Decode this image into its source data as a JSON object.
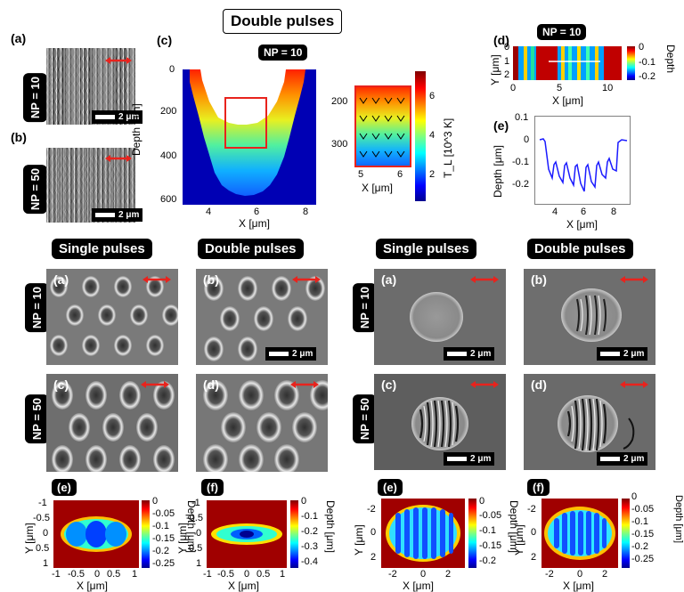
{
  "title": "Double pulses",
  "top": {
    "a_label": "(a)",
    "b_label": "(b)",
    "c_label": "(c)",
    "d_label": "(d)",
    "e_label": "(e)",
    "np10": "NP = 10",
    "np50": "NP = 50",
    "scale": "2 μm",
    "c_np": "NP = 10",
    "c_ylabel": "Depth [nm]",
    "c_xlabel": "X [μm]",
    "c_yticks": [
      "0",
      "200",
      "400",
      "600"
    ],
    "c_xticks": [
      "4",
      "6",
      "8"
    ],
    "inset_yticks": [
      "200",
      "300"
    ],
    "inset_xticks": [
      "5",
      "6"
    ],
    "inset_xlabel": "X [μm]",
    "tl_label": "T_L [10^3 K]",
    "tl_ticks": [
      "6",
      "4",
      "2"
    ],
    "d_np": "NP = 10",
    "d_ylabel": "Y [μm]",
    "d_xlabel": "X [μm]",
    "d_yticks": [
      "0",
      "1",
      "2"
    ],
    "d_xticks": [
      "0",
      "5",
      "10"
    ],
    "d_cbar_label": "Depth",
    "d_cbar_ticks": [
      "0",
      "-0.1",
      "-0.2"
    ],
    "e_ylabel": "Depth [μm]",
    "e_xlabel": "X [μm]",
    "e_yticks": [
      "0.1",
      "0",
      "-0.1",
      "-0.2"
    ],
    "e_xticks": [
      "4",
      "6",
      "8"
    ]
  },
  "bottom_left": {
    "single": "Single pulses",
    "double": "Double pulses",
    "np10": "NP = 10",
    "np50": "NP = 50",
    "labels": [
      "(a)",
      "(b)",
      "(c)",
      "(d)",
      "(e)",
      "(f)"
    ],
    "scale": "2 μm",
    "e_yticks": [
      "-1",
      "-0.5",
      "0",
      "0.5",
      "1"
    ],
    "e_xticks": [
      "-1",
      "-0.5",
      "0",
      "0.5",
      "1"
    ],
    "e_cbar": [
      "0",
      "-0.05",
      "-0.1",
      "-0.15",
      "-0.2",
      "-0.25"
    ],
    "f_cbar": [
      "0",
      "-0.1",
      "-0.2",
      "-0.3",
      "-0.4"
    ],
    "cbar_label": "Depth [μm]",
    "xlabel": "X [μm]",
    "ylabel": "Y [μm]"
  },
  "bottom_right": {
    "single": "Single pulses",
    "double": "Double pulses",
    "np10": "NP = 10",
    "np50": "NP = 50",
    "labels": [
      "(a)",
      "(b)",
      "(c)",
      "(d)",
      "(e)",
      "(f)"
    ],
    "scale": "2 μm",
    "e_yticks": [
      "-2",
      "0",
      "2"
    ],
    "e_xticks": [
      "-2",
      "0",
      "2"
    ],
    "e_cbar": [
      "0",
      "-0.05",
      "-0.1",
      "-0.15",
      "-0.2"
    ],
    "f_cbar": [
      "0",
      "-0.05",
      "-0.1",
      "-0.15",
      "-0.2",
      "-0.25"
    ],
    "cbar_label": "Depth [μm]",
    "xlabel": "X [μm]",
    "ylabel": "Y [μm]"
  },
  "colors": {
    "arrow": "#e8231d",
    "box": "#e8231d",
    "line": "#1a1aff"
  }
}
